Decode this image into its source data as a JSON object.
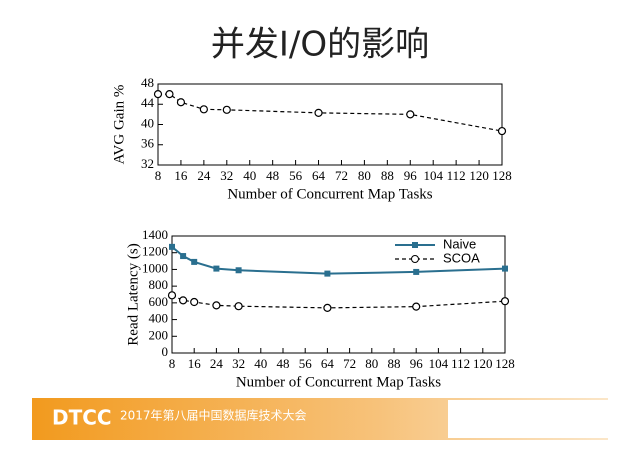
{
  "title": "并发I/O的影响",
  "chart_data": [
    {
      "type": "line",
      "ylabel": "AVG Gain %",
      "xlabel": "Number of Concurrent Map Tasks",
      "x": [
        8,
        12,
        16,
        24,
        32,
        64,
        96,
        128
      ],
      "xlim": [
        8,
        128
      ],
      "xticks": [
        8,
        16,
        24,
        32,
        40,
        48,
        56,
        64,
        72,
        80,
        88,
        96,
        104,
        112,
        120,
        128
      ],
      "ylim": [
        32,
        48
      ],
      "yticks": [
        32,
        36,
        40,
        44,
        48
      ],
      "series": [
        {
          "color": "#000000",
          "linestyle": "dashed",
          "marker": "circle",
          "values": [
            46,
            46,
            44.4,
            43,
            42.9,
            42.3,
            42.0,
            38.7
          ]
        }
      ]
    },
    {
      "type": "line",
      "ylabel": "Read Latency (s)",
      "xlabel": "Number of Concurrent Map Tasks",
      "x": [
        8,
        12,
        16,
        24,
        32,
        64,
        96,
        128
      ],
      "xlim": [
        8,
        128
      ],
      "xticks": [
        8,
        16,
        24,
        32,
        40,
        48,
        56,
        64,
        72,
        80,
        88,
        96,
        104,
        112,
        120,
        128
      ],
      "ylim": [
        0,
        1400
      ],
      "yticks": [
        0,
        200,
        400,
        600,
        800,
        1000,
        1200,
        1400
      ],
      "legend": "upper right",
      "series": [
        {
          "name": "Naive",
          "color": "#2a6f8f",
          "linestyle": "solid",
          "marker": "square",
          "values": [
            1270,
            1160,
            1090,
            1010,
            990,
            950,
            970,
            1010
          ]
        },
        {
          "name": "SCOA",
          "color": "#000000",
          "linestyle": "dashed",
          "marker": "circle",
          "values": [
            690,
            630,
            610,
            570,
            560,
            540,
            555,
            620
          ]
        }
      ]
    }
  ],
  "footer": {
    "logo": "DTCC",
    "text": "2017年第八届中国数据库技术大会"
  }
}
